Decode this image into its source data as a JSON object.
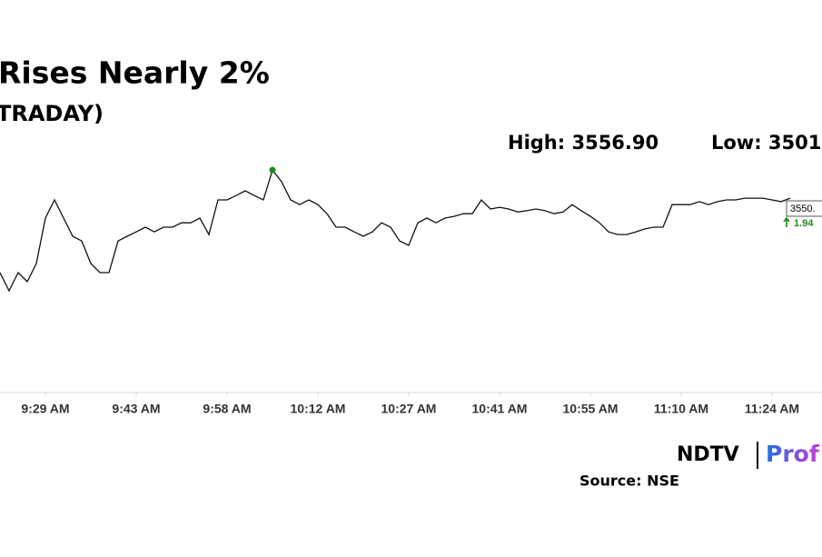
{
  "chart_data": {
    "type": "line",
    "title": "Rises Nearly 2%",
    "subtitle": "TRADAY)",
    "high_label": "High: 3556.90",
    "low_label": "Low: 3501",
    "last_price_label": "3550.",
    "change_label": "1.94",
    "source": "Source: NSE",
    "logo": {
      "left": "NDTV",
      "right": "Prof"
    },
    "categories": [
      null,
      null,
      null,
      null,
      null,
      "9:29 AM",
      null,
      null,
      null,
      null,
      null,
      null,
      null,
      null,
      null,
      "9:43 AM",
      null,
      null,
      null,
      null,
      null,
      null,
      null,
      null,
      null,
      "9:58 AM",
      null,
      null,
      null,
      null,
      null,
      null,
      null,
      null,
      null,
      "10:12 AM",
      null,
      null,
      null,
      null,
      null,
      null,
      null,
      null,
      null,
      "10:27 AM",
      null,
      null,
      null,
      null,
      null,
      null,
      null,
      null,
      null,
      "10:41 AM",
      null,
      null,
      null,
      null,
      null,
      null,
      null,
      null,
      null,
      "10:55 AM",
      null,
      null,
      null,
      null,
      null,
      null,
      null,
      null,
      null,
      "11:10 AM",
      null,
      null,
      null,
      null,
      null,
      null,
      null,
      null,
      null,
      "11:24 AM",
      null,
      null
    ],
    "values": [
      3533.2,
      3529.0,
      3533.2,
      3531.1,
      3535.3,
      3545.8,
      3550.0,
      3545.8,
      3541.6,
      3540.5,
      3535.3,
      3533.2,
      3533.2,
      3540.5,
      3541.6,
      3542.6,
      3543.7,
      3542.6,
      3543.7,
      3543.7,
      3544.7,
      3544.7,
      3545.8,
      3542.0,
      3550.0,
      3550.0,
      3551.0,
      3552.1,
      3551.0,
      3550.0,
      3556.9,
      3554.2,
      3550.0,
      3548.9,
      3550.0,
      3548.9,
      3546.8,
      3543.7,
      3543.7,
      3542.6,
      3541.6,
      3542.6,
      3544.7,
      3543.7,
      3540.5,
      3539.5,
      3544.7,
      3545.8,
      3544.7,
      3545.8,
      3546.2,
      3546.8,
      3546.8,
      3550.0,
      3547.9,
      3548.3,
      3547.9,
      3547.2,
      3547.5,
      3547.9,
      3547.5,
      3546.8,
      3547.2,
      3548.9,
      3547.5,
      3546.2,
      3544.7,
      3542.6,
      3542.0,
      3542.0,
      3542.6,
      3543.3,
      3543.7,
      3543.7,
      3548.9,
      3548.9,
      3548.9,
      3549.6,
      3548.9,
      3549.6,
      3550.0,
      3550.0,
      3550.4,
      3550.4,
      3550.4,
      3550.0,
      3549.6,
      3550.4
    ],
    "color": "#111111",
    "high_color": "#1a8c1a",
    "change_color": "#1a8c1a",
    "ylim": [
      3505.9,
      3560.5
    ]
  }
}
